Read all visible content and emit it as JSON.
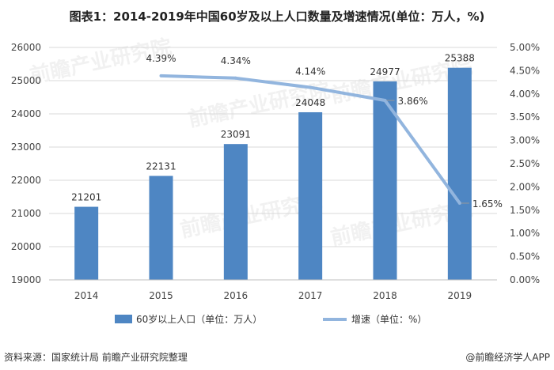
{
  "header": {
    "title": "图表1：2014-2019年中国60岁及以上人口数量及增速情况(单位：万人，%)"
  },
  "footer": {
    "source": "资料来源：国家统计局 前瞻产业研究院整理",
    "brand": "@前瞻经济学人APP"
  },
  "watermark": {
    "text": "前瞻产业研究院"
  },
  "colors": {
    "bar": "#4e86c3",
    "line": "#92b5de",
    "grid": "#d9d9d9"
  },
  "chart_data": {
    "type": "bar",
    "categories": [
      "2014",
      "2015",
      "2016",
      "2017",
      "2018",
      "2019"
    ],
    "series": [
      {
        "name": "60岁以上人口（单位：万人）",
        "type": "bar",
        "axis": "left",
        "values": [
          21201,
          22131,
          23091,
          24048,
          24977,
          25388
        ],
        "labels": [
          "21201",
          "22131",
          "23091",
          "24048",
          "24977",
          "25388"
        ]
      },
      {
        "name": "增速（单位：%）",
        "type": "line",
        "axis": "right",
        "values": [
          null,
          4.39,
          4.34,
          4.14,
          3.86,
          1.65
        ],
        "labels": [
          "",
          "4.39%",
          "4.34%",
          "4.14%",
          "3.86%",
          "1.65%"
        ]
      }
    ],
    "ylim_left": [
      19000,
      26000
    ],
    "yticks_left": [
      "19000",
      "20000",
      "21000",
      "22000",
      "23000",
      "24000",
      "25000",
      "26000"
    ],
    "ylim_right": [
      0,
      5
    ],
    "yticks_right": [
      "0.00%",
      "0.50%",
      "1.00%",
      "1.50%",
      "2.00%",
      "2.50%",
      "3.00%",
      "3.50%",
      "4.00%",
      "4.50%",
      "5.00%"
    ],
    "legend_position": "bottom"
  }
}
